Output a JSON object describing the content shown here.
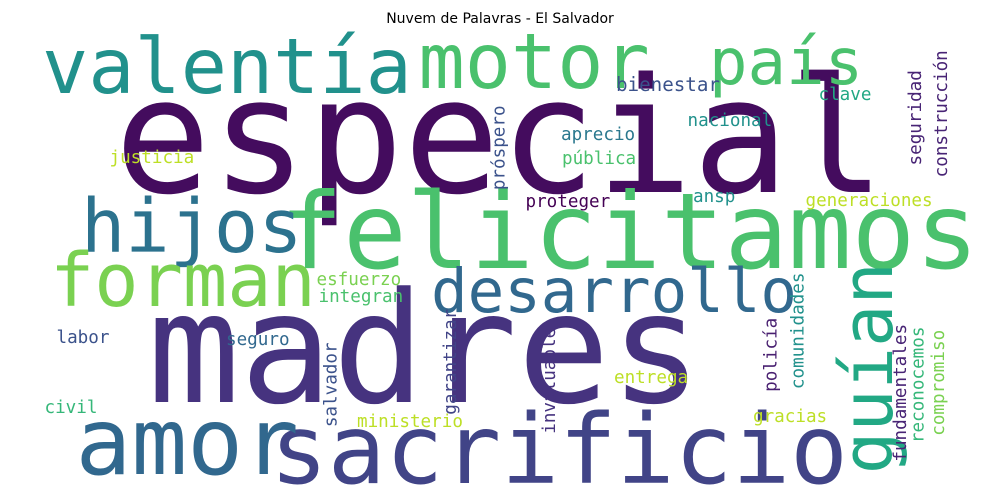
{
  "chart_data": {
    "type": "wordcloud",
    "title": "Nuvem de Palavras - El Salvador",
    "words": [
      {
        "text": "especial",
        "weight": 100,
        "color": "#440c5e",
        "orientation": "horizontal"
      },
      {
        "text": "madres",
        "weight": 96,
        "color": "#46337f",
        "orientation": "horizontal"
      },
      {
        "text": "felicitamos",
        "weight": 66,
        "color": "#4ac16d",
        "orientation": "horizontal"
      },
      {
        "text": "sacrificio",
        "weight": 60,
        "color": "#414487",
        "orientation": "horizontal"
      },
      {
        "text": "amor",
        "weight": 58,
        "color": "#31688e",
        "orientation": "horizontal"
      },
      {
        "text": "valentía",
        "weight": 48,
        "color": "#21918c",
        "orientation": "horizontal"
      },
      {
        "text": "motor",
        "weight": 48,
        "color": "#4ac16d",
        "orientation": "horizontal"
      },
      {
        "text": "hijos",
        "weight": 46,
        "color": "#2c728e",
        "orientation": "horizontal"
      },
      {
        "text": "forman",
        "weight": 46,
        "color": "#7ad151",
        "orientation": "horizontal"
      },
      {
        "text": "guían",
        "weight": 44,
        "color": "#22a884",
        "orientation": "vertical"
      },
      {
        "text": "país",
        "weight": 40,
        "color": "#4ac16d",
        "orientation": "horizontal"
      },
      {
        "text": "desarrollo",
        "weight": 38,
        "color": "#31688e",
        "orientation": "horizontal"
      },
      {
        "text": "bienestar",
        "weight": 12,
        "color": "#3b528b",
        "orientation": "horizontal"
      },
      {
        "text": "clave",
        "weight": 11,
        "color": "#22a884",
        "orientation": "horizontal"
      },
      {
        "text": "nacional",
        "weight": 11,
        "color": "#21918c",
        "orientation": "horizontal"
      },
      {
        "text": "aprecio",
        "weight": 11,
        "color": "#2a788e",
        "orientation": "horizontal"
      },
      {
        "text": "pública",
        "weight": 11,
        "color": "#4ac16d",
        "orientation": "horizontal"
      },
      {
        "text": "justicia",
        "weight": 11,
        "color": "#bddf26",
        "orientation": "horizontal"
      },
      {
        "text": "próspero",
        "weight": 11,
        "color": "#3b528b",
        "orientation": "vertical"
      },
      {
        "text": "seguridad",
        "weight": 11,
        "color": "#482475",
        "orientation": "vertical"
      },
      {
        "text": "construcción",
        "weight": 11,
        "color": "#482475",
        "orientation": "vertical"
      },
      {
        "text": "proteger",
        "weight": 11,
        "color": "#440154",
        "orientation": "horizontal"
      },
      {
        "text": "ansp",
        "weight": 11,
        "color": "#21918c",
        "orientation": "horizontal"
      },
      {
        "text": "generaciones",
        "weight": 11,
        "color": "#bddf26",
        "orientation": "horizontal"
      },
      {
        "text": "esfuerzo",
        "weight": 11,
        "color": "#7ad151",
        "orientation": "horizontal"
      },
      {
        "text": "integran",
        "weight": 11,
        "color": "#4ac16d",
        "orientation": "horizontal"
      },
      {
        "text": "garantizar",
        "weight": 11,
        "color": "#414487",
        "orientation": "vertical"
      },
      {
        "text": "comunidades",
        "weight": 11,
        "color": "#21918c",
        "orientation": "vertical"
      },
      {
        "text": "labor",
        "weight": 11,
        "color": "#3b528b",
        "orientation": "horizontal"
      },
      {
        "text": "seguro",
        "weight": 11,
        "color": "#31688e",
        "orientation": "horizontal"
      },
      {
        "text": "invaluable",
        "weight": 11,
        "color": "#46337f",
        "orientation": "vertical"
      },
      {
        "text": "policía",
        "weight": 11,
        "color": "#481f70",
        "orientation": "vertical"
      },
      {
        "text": "fundamentales",
        "weight": 11,
        "color": "#482475",
        "orientation": "vertical"
      },
      {
        "text": "reconocemos",
        "weight": 11,
        "color": "#35b779",
        "orientation": "vertical"
      },
      {
        "text": "compromiso",
        "weight": 11,
        "color": "#7ad151",
        "orientation": "vertical"
      },
      {
        "text": "salvador",
        "weight": 11,
        "color": "#3b528b",
        "orientation": "vertical"
      },
      {
        "text": "entrega",
        "weight": 11,
        "color": "#bddf26",
        "orientation": "horizontal"
      },
      {
        "text": "civil",
        "weight": 11,
        "color": "#35b779",
        "orientation": "horizontal"
      },
      {
        "text": "ministerio",
        "weight": 11,
        "color": "#bddf26",
        "orientation": "horizontal"
      },
      {
        "text": "gracias",
        "weight": 11,
        "color": "#bddf26",
        "orientation": "horizontal"
      }
    ]
  }
}
